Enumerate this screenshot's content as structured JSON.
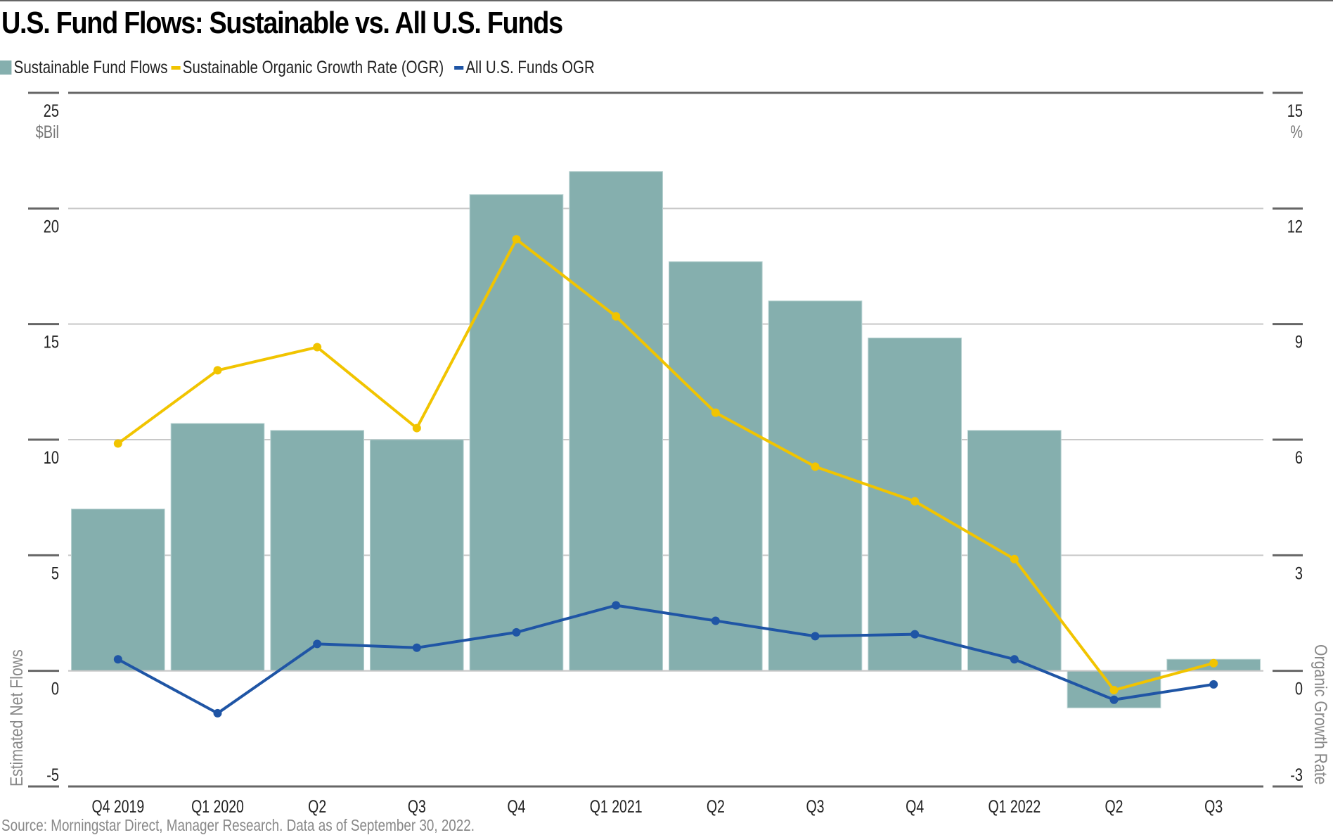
{
  "chart_data": {
    "type": "bar",
    "title": "U.S. Fund Flows: Sustainable vs. All U.S. Funds",
    "categories": [
      "Q4 2019",
      "Q1 2020",
      "Q2",
      "Q3",
      "Q4",
      "Q1 2021",
      "Q2",
      "Q3",
      "Q4",
      "Q1 2022",
      "Q2",
      "Q3"
    ],
    "series": [
      {
        "name": "Sustainable Fund Flows",
        "type": "bar",
        "axis": "left",
        "color": "#85afae",
        "values": [
          7.0,
          10.7,
          10.4,
          10.0,
          20.6,
          21.6,
          17.7,
          16.0,
          14.4,
          10.4,
          -1.6,
          0.5
        ]
      },
      {
        "name": "Sustainable Organic Growth Rate (OGR)",
        "type": "line",
        "axis": "right",
        "color": "#f1c400",
        "values": [
          5.9,
          7.8,
          8.4,
          6.3,
          11.2,
          9.2,
          6.7,
          5.3,
          4.4,
          2.9,
          -0.5,
          0.2
        ]
      },
      {
        "name": "All U.S. Funds OGR",
        "type": "line",
        "axis": "right",
        "color": "#1f55a5",
        "values": [
          0.3,
          -1.1,
          0.7,
          0.6,
          1.0,
          1.7,
          1.3,
          0.9,
          0.95,
          0.3,
          -0.75,
          -0.35
        ]
      }
    ],
    "left_axis": {
      "label": "Estimated Net Flows",
      "unit": "$Bil",
      "ylim": [
        -5,
        25
      ],
      "ticks": [
        "-5",
        "0",
        "5",
        "10",
        "15",
        "20",
        "25"
      ]
    },
    "right_axis": {
      "label": "Organic Growth Rate",
      "unit": "%",
      "ylim": [
        -3,
        15
      ],
      "ticks": [
        "-3",
        "0",
        "3",
        "6",
        "9",
        "12",
        "15"
      ]
    },
    "grid": true,
    "legend_position": "top-left",
    "source": "Source: Morningstar Direct, Manager Research. Data as of September 30, 2022."
  }
}
